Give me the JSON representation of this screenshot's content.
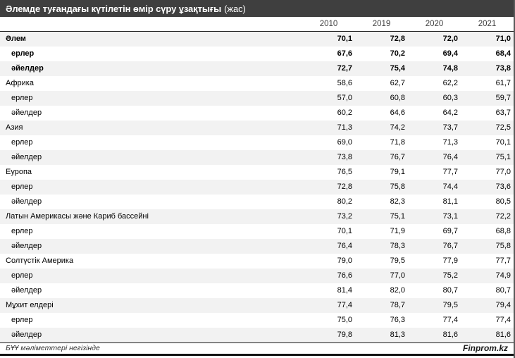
{
  "chart_data": {
    "type": "table",
    "title": "Әлемде туғандағы күтілетін өмір сүру ұзақтығы",
    "title_unit": "(жас)",
    "columns": [
      "2010",
      "2019",
      "2020",
      "2021"
    ],
    "decimal_separator": ",",
    "rows": [
      {
        "label": "Әлем",
        "group": true,
        "bold": true,
        "values": [
          70.1,
          72.8,
          72.0,
          71.0
        ]
      },
      {
        "label": "ерлер",
        "group": false,
        "bold": true,
        "values": [
          67.6,
          70.2,
          69.4,
          68.4
        ]
      },
      {
        "label": "әйелдер",
        "group": false,
        "bold": true,
        "values": [
          72.7,
          75.4,
          74.8,
          73.8
        ]
      },
      {
        "label": "Африка",
        "group": true,
        "bold": false,
        "values": [
          58.6,
          62.7,
          62.2,
          61.7
        ]
      },
      {
        "label": "ерлер",
        "group": false,
        "bold": false,
        "values": [
          57.0,
          60.8,
          60.3,
          59.7
        ]
      },
      {
        "label": "әйелдер",
        "group": false,
        "bold": false,
        "values": [
          60.2,
          64.6,
          64.2,
          63.7
        ]
      },
      {
        "label": "Азия",
        "group": true,
        "bold": false,
        "values": [
          71.3,
          74.2,
          73.7,
          72.5
        ]
      },
      {
        "label": "ерлер",
        "group": false,
        "bold": false,
        "values": [
          69.0,
          71.8,
          71.3,
          70.1
        ]
      },
      {
        "label": "әйелдер",
        "group": false,
        "bold": false,
        "values": [
          73.8,
          76.7,
          76.4,
          75.1
        ]
      },
      {
        "label": "Еуропа",
        "group": true,
        "bold": false,
        "values": [
          76.5,
          79.1,
          77.7,
          77.0
        ]
      },
      {
        "label": "ерлер",
        "group": false,
        "bold": false,
        "values": [
          72.8,
          75.8,
          74.4,
          73.6
        ]
      },
      {
        "label": "әйелдер",
        "group": false,
        "bold": false,
        "values": [
          80.2,
          82.3,
          81.1,
          80.5
        ]
      },
      {
        "label": "Латын Америкасы және Кариб бассейні",
        "group": true,
        "bold": false,
        "values": [
          73.2,
          75.1,
          73.1,
          72.2
        ]
      },
      {
        "label": "ерлер",
        "group": false,
        "bold": false,
        "values": [
          70.1,
          71.9,
          69.7,
          68.8
        ]
      },
      {
        "label": "әйелдер",
        "group": false,
        "bold": false,
        "values": [
          76.4,
          78.3,
          76.7,
          75.8
        ]
      },
      {
        "label": "Солтүстік Америка",
        "group": true,
        "bold": false,
        "values": [
          79.0,
          79.5,
          77.9,
          77.7
        ]
      },
      {
        "label": "ерлер",
        "group": false,
        "bold": false,
        "values": [
          76.6,
          77.0,
          75.2,
          74.9
        ]
      },
      {
        "label": "әйелдер",
        "group": false,
        "bold": false,
        "values": [
          81.4,
          82.0,
          80.7,
          80.7
        ]
      },
      {
        "label": "Мұхит елдері",
        "group": true,
        "bold": false,
        "values": [
          77.4,
          78.7,
          79.5,
          79.4
        ]
      },
      {
        "label": "ерлер",
        "group": false,
        "bold": false,
        "values": [
          75.0,
          76.3,
          77.4,
          77.4
        ]
      },
      {
        "label": "әйелдер",
        "group": false,
        "bold": false,
        "values": [
          79.8,
          81.3,
          81.6,
          81.6
        ]
      }
    ],
    "source": "БҰҰ мәліметтері негізінде",
    "brand": "Finprom.kz"
  },
  "colors": {
    "title_bar_bg": "#3f3f3f",
    "title_text": "#ffffff",
    "row_stripe": "#f2f2f2",
    "rule_line": "#1a1a1a",
    "right_edge": "#5a5a5a"
  }
}
